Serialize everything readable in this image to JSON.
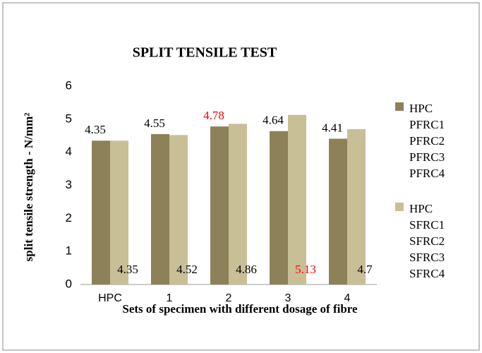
{
  "chart_data": {
    "type": "bar",
    "title": "SPLIT TENSILE TEST",
    "x_label": "Sets of specimen with different dosage of fibre",
    "y_label": "split tensile  strength - N/mm²",
    "categories": [
      "HPC",
      "1",
      "2",
      "3",
      "4"
    ],
    "series": [
      {
        "name": "HPC\nPFRC1\nPFRC2\nPFRC3\nPFRC4",
        "color": "#8c8159",
        "values": [
          4.35,
          4.55,
          4.78,
          4.64,
          4.41
        ],
        "label_colors": [
          "#000000",
          "#000000",
          "#ff0000",
          "#000000",
          "#000000"
        ]
      },
      {
        "name": "HPC\nSFRC1\nSFRC2\nSFRC3\nSFRC4",
        "color": "#c8bf97",
        "values": [
          4.35,
          4.52,
          4.86,
          5.13,
          4.7
        ],
        "label_colors": [
          "#000000",
          "#000000",
          "#000000",
          "#ff0000",
          "#000000"
        ]
      }
    ],
    "ylim": [
      0,
      6
    ],
    "yticks": [
      0,
      1,
      2,
      3,
      4,
      5,
      6
    ],
    "grid": false,
    "legend": "right"
  }
}
